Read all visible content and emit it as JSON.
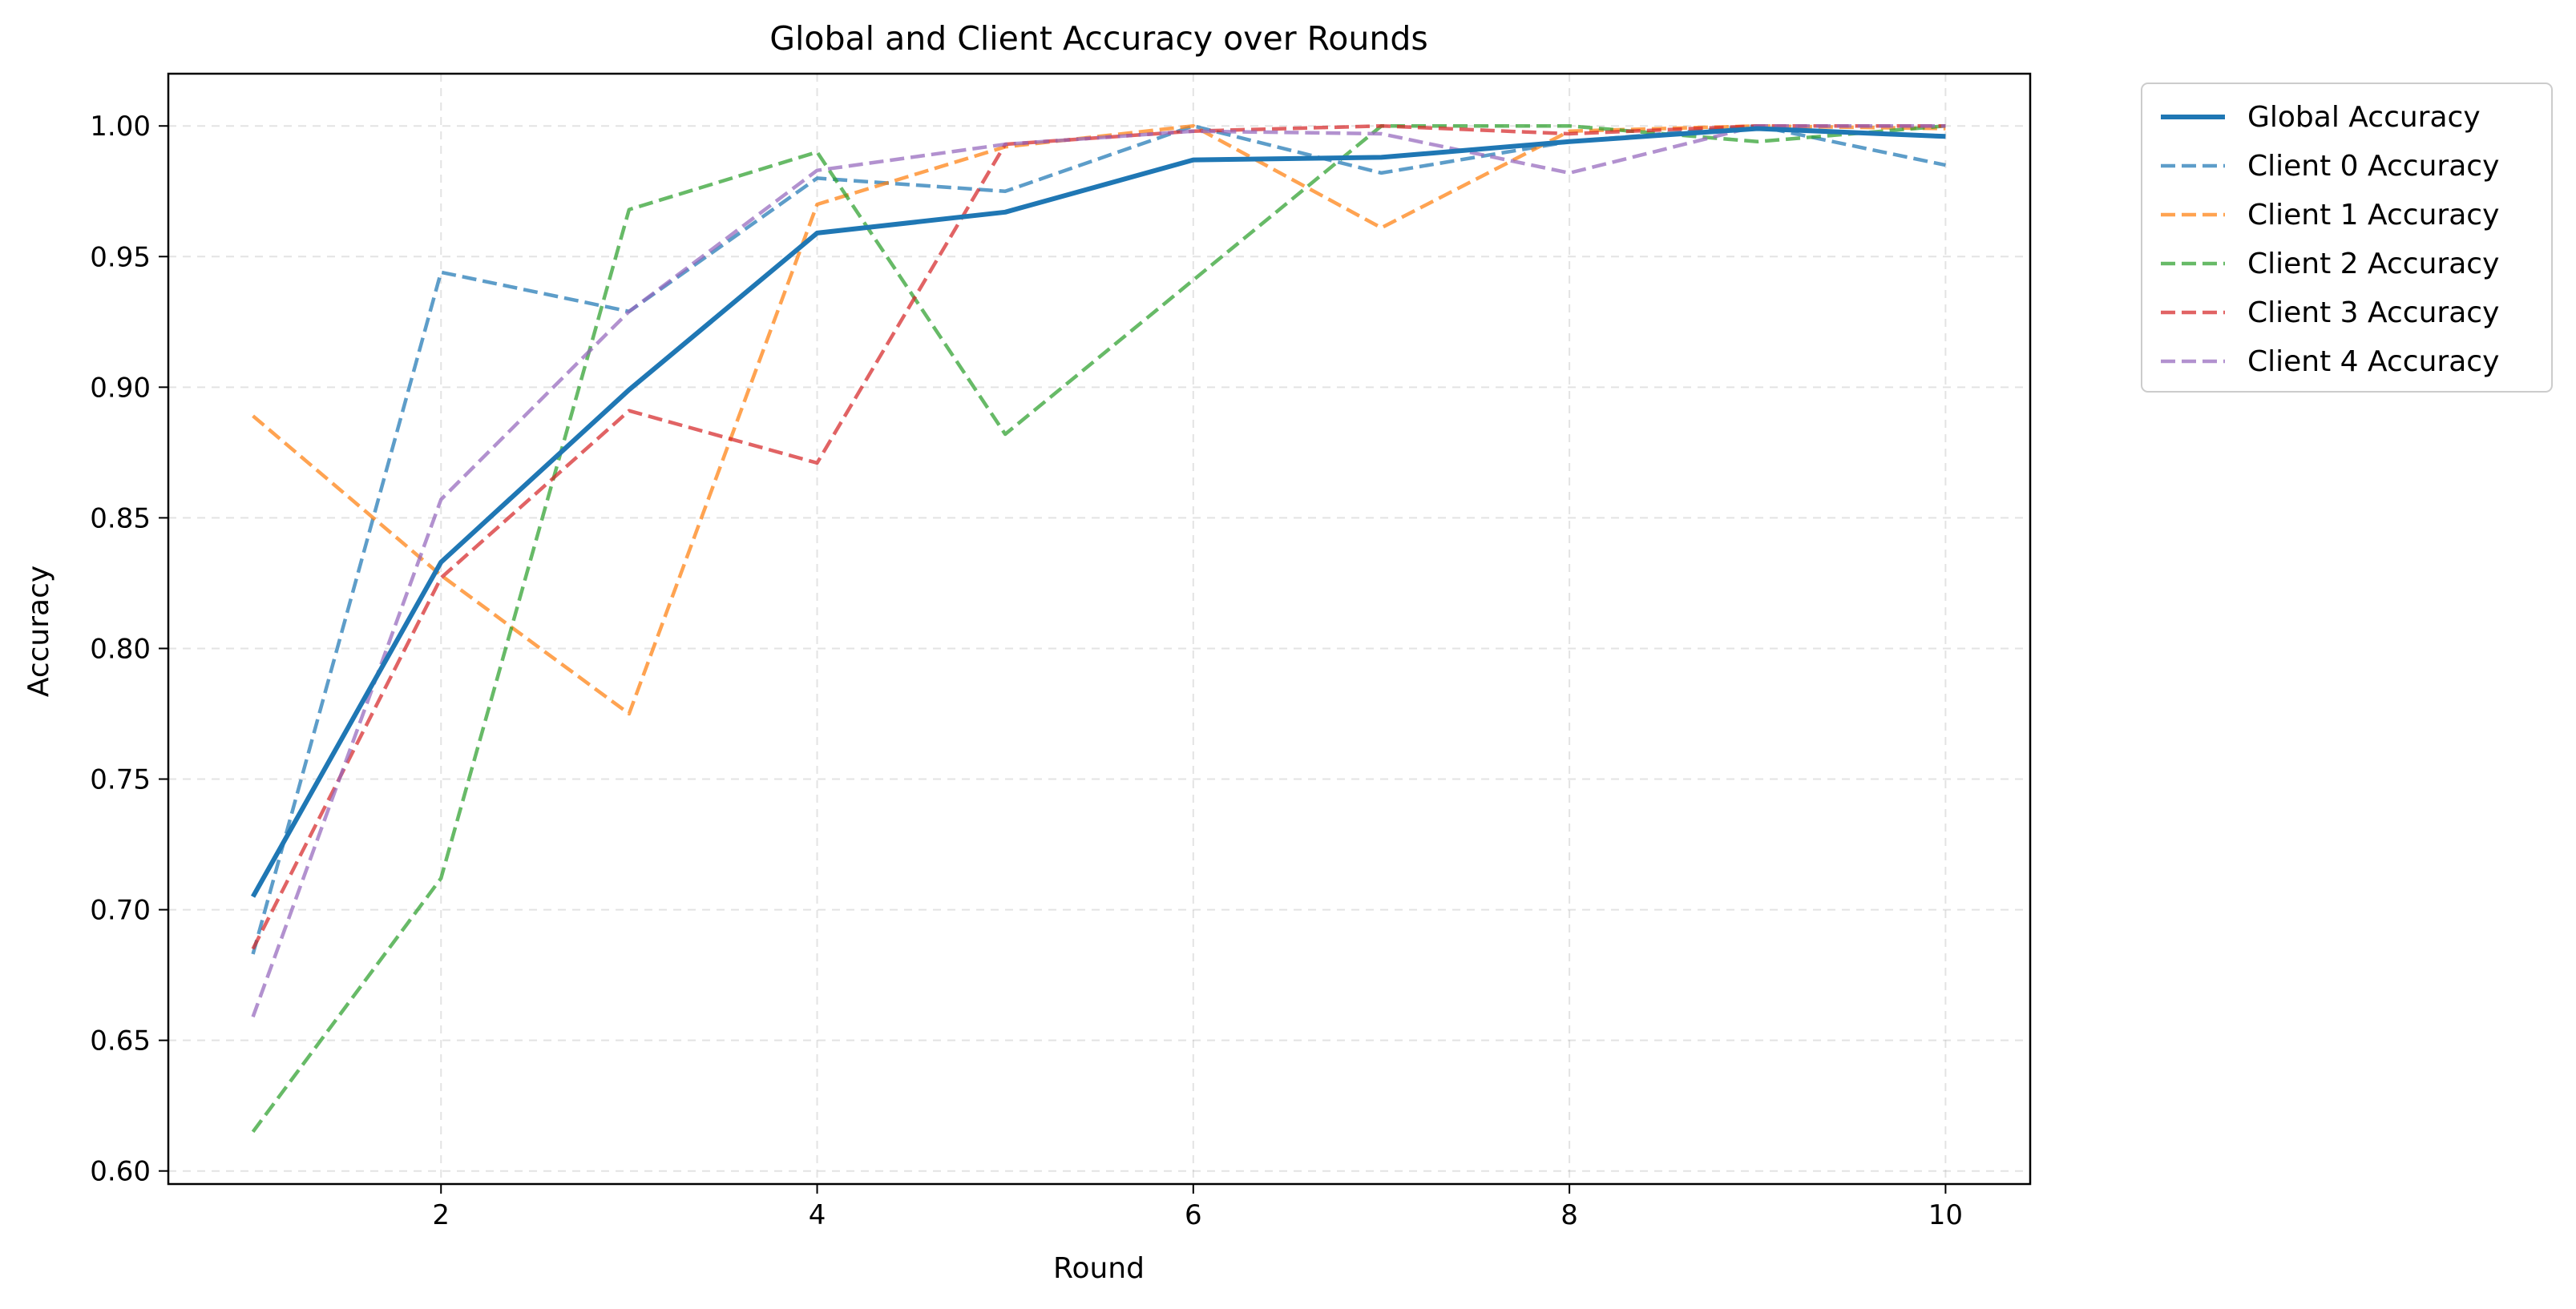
{
  "chart_data": {
    "type": "line",
    "title": "Global and Client Accuracy over Rounds",
    "xlabel": "Round",
    "ylabel": "Accuracy",
    "xlim": [
      0.55,
      10.45
    ],
    "ylim": [
      0.595,
      1.02
    ],
    "xticks": [
      2,
      4,
      6,
      8,
      10
    ],
    "yticks": [
      0.6,
      0.65,
      0.7,
      0.75,
      0.8,
      0.85,
      0.9,
      0.95,
      1.0
    ],
    "grid": true,
    "legend_position": "outside-top-right",
    "x": [
      1,
      2,
      3,
      4,
      5,
      6,
      7,
      8,
      9,
      10
    ],
    "series": [
      {
        "name": "Global Accuracy",
        "color": "#1f77b4",
        "style": "solid",
        "values": [
          0.705,
          0.833,
          0.899,
          0.959,
          0.967,
          0.987,
          0.988,
          0.994,
          0.999,
          0.996
        ]
      },
      {
        "name": "Client 0 Accuracy",
        "color": "#1f77b4",
        "style": "dashed",
        "values": [
          0.683,
          0.944,
          0.929,
          0.98,
          0.975,
          1.0,
          0.982,
          0.994,
          1.0,
          0.985
        ]
      },
      {
        "name": "Client 1 Accuracy",
        "color": "#ff7f0e",
        "style": "dashed",
        "values": [
          0.889,
          0.828,
          0.775,
          0.97,
          0.992,
          1.0,
          0.961,
          0.998,
          1.0,
          0.999
        ]
      },
      {
        "name": "Client 2 Accuracy",
        "color": "#2ca02c",
        "style": "dashed",
        "values": [
          0.615,
          0.712,
          0.968,
          0.99,
          0.882,
          0.941,
          1.0,
          1.0,
          0.994,
          1.0
        ]
      },
      {
        "name": "Client 3 Accuracy",
        "color": "#d62728",
        "style": "dashed",
        "values": [
          0.685,
          0.827,
          0.891,
          0.871,
          0.993,
          0.998,
          1.0,
          0.997,
          1.0,
          1.0
        ]
      },
      {
        "name": "Client 4 Accuracy",
        "color": "#9467bd",
        "style": "dashed",
        "values": [
          0.659,
          0.857,
          0.929,
          0.983,
          0.993,
          0.998,
          0.997,
          0.982,
          1.0,
          1.0
        ]
      }
    ]
  }
}
